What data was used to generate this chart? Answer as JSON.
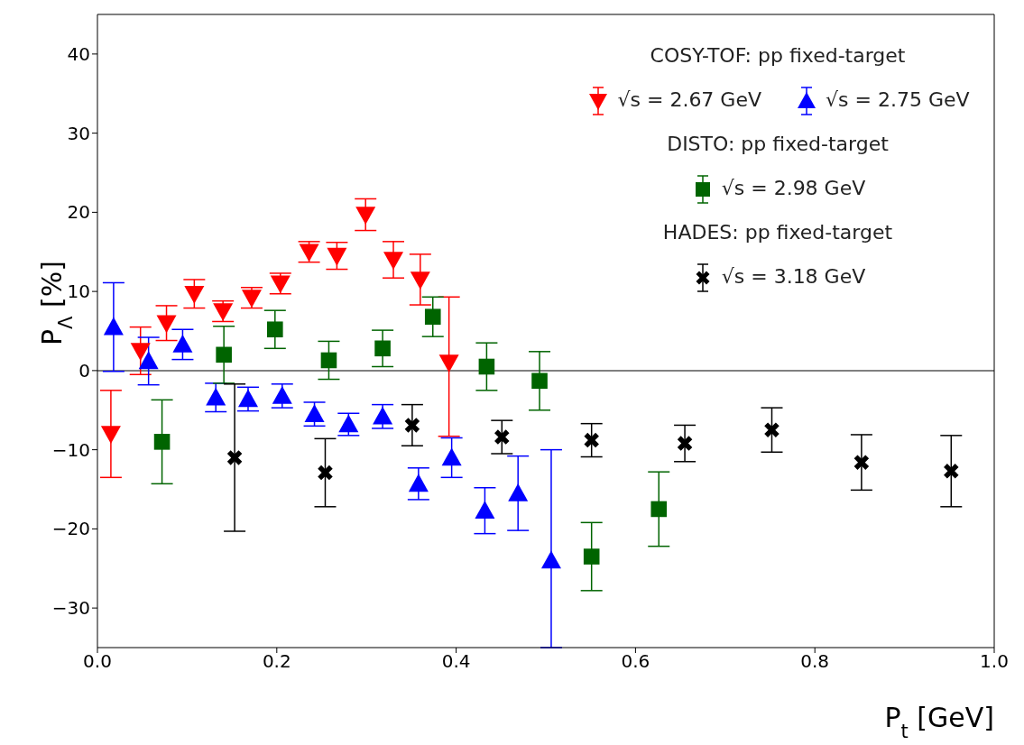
{
  "chart_data": {
    "type": "scatter",
    "xlabel": "P$_{t}$ [GeV]",
    "ylabel": "P$_{Λ}$ [%]",
    "xlim": [
      0,
      1
    ],
    "xticks": [
      {
        "value": 0,
        "label": "0.0"
      },
      0.2,
      0.4,
      0.6,
      0.8,
      {
        "value": 1,
        "label": "1.0"
      }
    ],
    "ylim": [
      -35,
      45
    ],
    "yticks": [
      -30,
      -20,
      -10,
      0,
      10,
      20,
      30,
      40
    ],
    "grid": false,
    "legend": "top right",
    "annotations": [
      "COSY-TOF: pp fixed-target",
      "DISTO: pp fixed-target",
      "HADES: pp fixed-target"
    ],
    "ref_lines": [
      {
        "axis": "y",
        "value": 0,
        "color": "#808080"
      }
    ],
    "series": [
      {
        "name": "√s = 2.67 GeV",
        "color": "#ff0000",
        "marker": "triangle-down",
        "x": [
          0.015,
          0.048,
          0.077,
          0.108,
          0.14,
          0.172,
          0.204,
          0.236,
          0.267,
          0.299,
          0.33,
          0.36,
          0.392
        ],
        "values": [
          -8,
          2.5,
          6,
          9.7,
          7.5,
          9.2,
          11,
          15,
          14.5,
          19.7,
          14,
          11.5,
          1
        ],
        "errors": [
          5.5,
          3,
          2.2,
          1.8,
          1.3,
          1.3,
          1.3,
          1.3,
          1.7,
          2,
          2.3,
          3.2,
          [
            -8.3,
            9.3
          ]
        ]
      },
      {
        "name": "√s = 2.75 GeV",
        "color": "#0000ff",
        "marker": "triangle",
        "x": [
          0.018,
          0.057,
          0.095,
          0.132,
          0.168,
          0.206,
          0.242,
          0.28,
          0.318,
          0.358,
          0.395,
          0.432,
          0.469,
          0.506
        ],
        "values": [
          5.5,
          1.2,
          3.3,
          -3.4,
          -3.6,
          -3.2,
          -5.5,
          -6.8,
          -5.8,
          -14.3,
          -11,
          -17.7,
          -15.5,
          -24
        ],
        "errors": [
          5.6,
          3,
          1.9,
          1.8,
          1.5,
          1.5,
          1.5,
          1.4,
          1.5,
          2,
          2.5,
          2.9,
          4.7,
          [
            -35,
            -10
          ]
        ]
      },
      {
        "name": "√s = 2.98 GeV",
        "color": "#006400",
        "marker": "square",
        "x": [
          0.072,
          0.141,
          0.198,
          0.258,
          0.318,
          0.374,
          0.434,
          0.493,
          0.551,
          0.626
        ],
        "values": [
          -9,
          2,
          5.2,
          1.3,
          2.8,
          6.8,
          0.5,
          -1.3,
          -23.5,
          -17.5
        ],
        "errors": [
          5.3,
          3.6,
          2.4,
          2.4,
          2.3,
          2.5,
          3,
          3.7,
          4.3,
          4.7
        ]
      },
      {
        "name": "√s = 3.18 GeV",
        "color": "#000000",
        "marker": "cross",
        "x": [
          0.153,
          0.254,
          0.351,
          0.451,
          0.551,
          0.655,
          0.752,
          0.852,
          0.952
        ],
        "values": [
          -11,
          -12.9,
          -6.9,
          -8.4,
          -8.8,
          -9.2,
          -7.5,
          -11.6,
          -12.7
        ],
        "errors": [
          9.3,
          4.3,
          2.6,
          2.1,
          2.1,
          2.3,
          2.8,
          3.5,
          4.5
        ]
      }
    ]
  }
}
